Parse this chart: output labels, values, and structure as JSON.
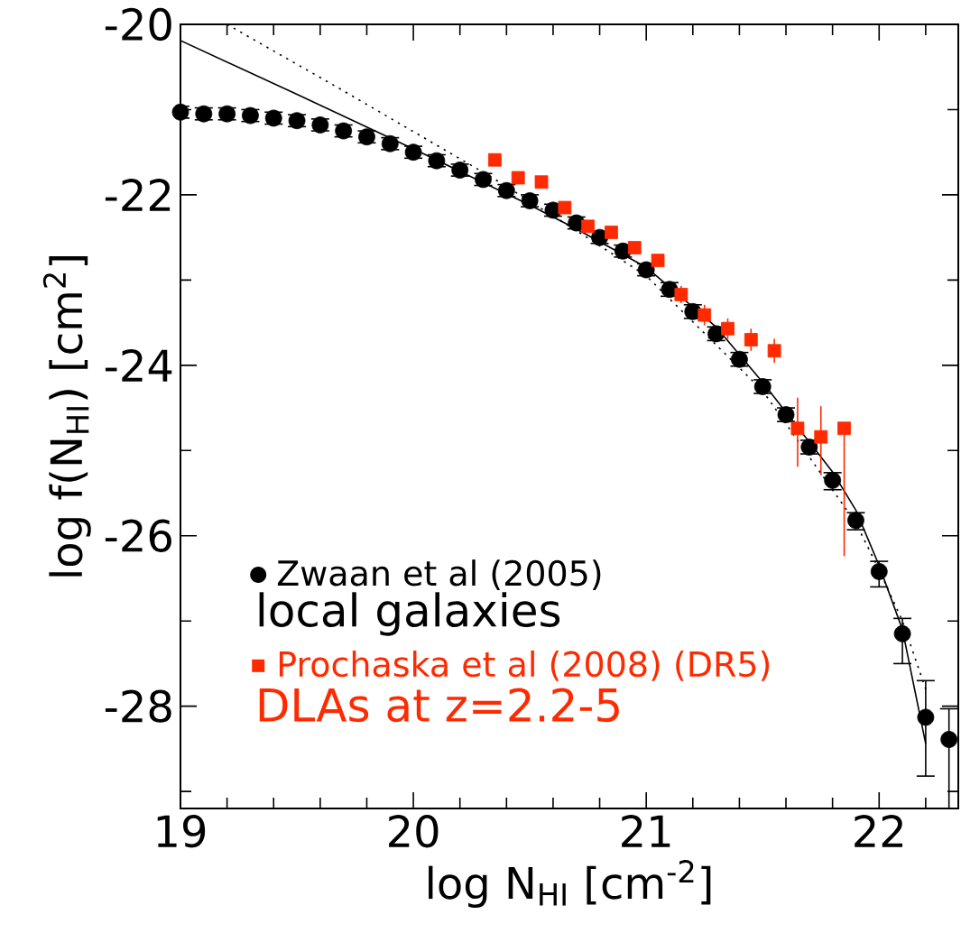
{
  "chart_data": {
    "type": "scatter",
    "xlabel": "log N$_{HI}$ [cm$^{-2}$]",
    "ylabel": "log f(N$_{HI}$) [cm$^{2}$]",
    "xlim": [
      19,
      22.34
    ],
    "ylim": [
      -29.2,
      -20
    ],
    "xticks": [
      19,
      {
        "value": 19.2,
        "label": null
      },
      {
        "value": 19.4,
        "label": null
      },
      {
        "value": 19.6,
        "label": null
      },
      {
        "value": 19.8,
        "label": null
      },
      20,
      {
        "value": 20.2,
        "label": null
      },
      {
        "value": 20.4,
        "label": null
      },
      {
        "value": 20.6,
        "label": null
      },
      {
        "value": 20.8,
        "label": null
      },
      21,
      {
        "value": 21.2,
        "label": null
      },
      {
        "value": 21.4,
        "label": null
      },
      {
        "value": 21.6,
        "label": null
      },
      {
        "value": 21.8,
        "label": null
      },
      22,
      {
        "value": 22.2,
        "label": null
      }
    ],
    "yticks": [
      -20,
      {
        "value": -21,
        "label": null
      },
      -22,
      {
        "value": -23,
        "label": null
      },
      -24,
      {
        "value": -25,
        "label": null
      },
      -26,
      {
        "value": -27,
        "label": null
      },
      -28,
      {
        "value": -29,
        "label": null
      }
    ],
    "legend": "bottom left",
    "grid": false,
    "annotations": [
      "local galaxies",
      "DLAs at z=2.2-5"
    ],
    "series": [
      {
        "name": null,
        "type": "line",
        "color": "#000000",
        "marker": "none",
        "line_style": "solid",
        "x": [
          19,
          19.5,
          20,
          20.5,
          20.7,
          21,
          21.3,
          21.5,
          21.8,
          21.9,
          22,
          22.1,
          22.2
        ],
        "values": [
          -20.19,
          -20.82,
          -21.46,
          -22.12,
          -22.4,
          -22.85,
          -23.55,
          -24.2,
          -25.25,
          -25.7,
          -26.35,
          -27.1,
          -28.44
        ]
      },
      {
        "name": null,
        "type": "line",
        "color": "#000000",
        "marker": "none",
        "line_style": "dotted",
        "x": [
          19.2,
          19.7,
          20.34,
          20.7,
          21,
          21.5,
          21.9,
          22,
          22.1,
          22.2
        ],
        "values": [
          -20,
          -20.78,
          -21.8,
          -22.42,
          -22.95,
          -24.3,
          -25.85,
          -26.4,
          -27.0,
          -27.8
        ]
      },
      {
        "name": "Zwaan et al (2005)",
        "color": "#000000",
        "marker": "circle",
        "x": [
          19.0,
          19.1,
          19.2,
          19.3,
          19.4,
          19.5,
          19.6,
          19.7,
          19.8,
          19.9,
          20.0,
          20.1,
          20.2,
          20.3,
          20.4,
          20.5,
          20.6,
          20.7,
          20.8,
          20.9,
          21.0,
          21.1,
          21.2,
          21.3,
          21.4,
          21.5,
          21.6,
          21.7,
          21.8,
          21.9,
          22.0,
          22.1,
          22.2,
          22.3
        ],
        "values": [
          -21.03,
          -21.05,
          -21.05,
          -21.07,
          -21.1,
          -21.13,
          -21.18,
          -21.25,
          -21.32,
          -21.4,
          -21.5,
          -21.6,
          -21.71,
          -21.82,
          -21.95,
          -22.07,
          -22.18,
          -22.33,
          -22.5,
          -22.66,
          -22.88,
          -23.11,
          -23.37,
          -23.63,
          -23.93,
          -24.25,
          -24.58,
          -24.96,
          -25.35,
          -25.82,
          -26.42,
          -27.15,
          -28.13,
          -28.39
        ],
        "errors": [
          0.07,
          0.07,
          0.07,
          0.07,
          0.07,
          0.07,
          0.07,
          0.07,
          0.07,
          0.07,
          0.07,
          0.07,
          0.07,
          0.07,
          0.07,
          0.07,
          0.07,
          0.07,
          0.07,
          0.07,
          0.07,
          0.08,
          0.08,
          0.08,
          0.08,
          0.08,
          0.08,
          0.08,
          [
            -25.46,
            -25.26
          ],
          [
            -25.93,
            -25.73
          ],
          [
            -26.6,
            -26.3
          ],
          [
            -27.5,
            -26.97
          ],
          [
            -28.82,
            -27.7
          ],
          [
            -29.2,
            -28.03
          ]
        ]
      },
      {
        "name": "Prochaska et al (2008) (DR5)",
        "color": "#ff2a00",
        "marker": "square",
        "x": [
          20.35,
          20.45,
          20.55,
          20.65,
          20.75,
          20.85,
          20.95,
          21.05,
          21.15,
          21.25,
          21.35,
          21.45,
          21.55,
          21.65,
          21.75,
          21.85
        ],
        "values": [
          -21.59,
          -21.8,
          -21.85,
          -22.15,
          -22.37,
          -22.44,
          -22.62,
          -22.77,
          -23.17,
          -23.41,
          -23.57,
          -23.7,
          -23.83,
          -24.74,
          -24.84,
          -24.74
        ],
        "errors": [
          null,
          null,
          null,
          null,
          null,
          null,
          null,
          null,
          0.1,
          0.12,
          0.12,
          0.13,
          0.14,
          [
            -25.19,
            -24.38
          ],
          [
            -25.29,
            -24.48
          ],
          [
            -26.24,
            -24.74
          ]
        ]
      }
    ]
  }
}
